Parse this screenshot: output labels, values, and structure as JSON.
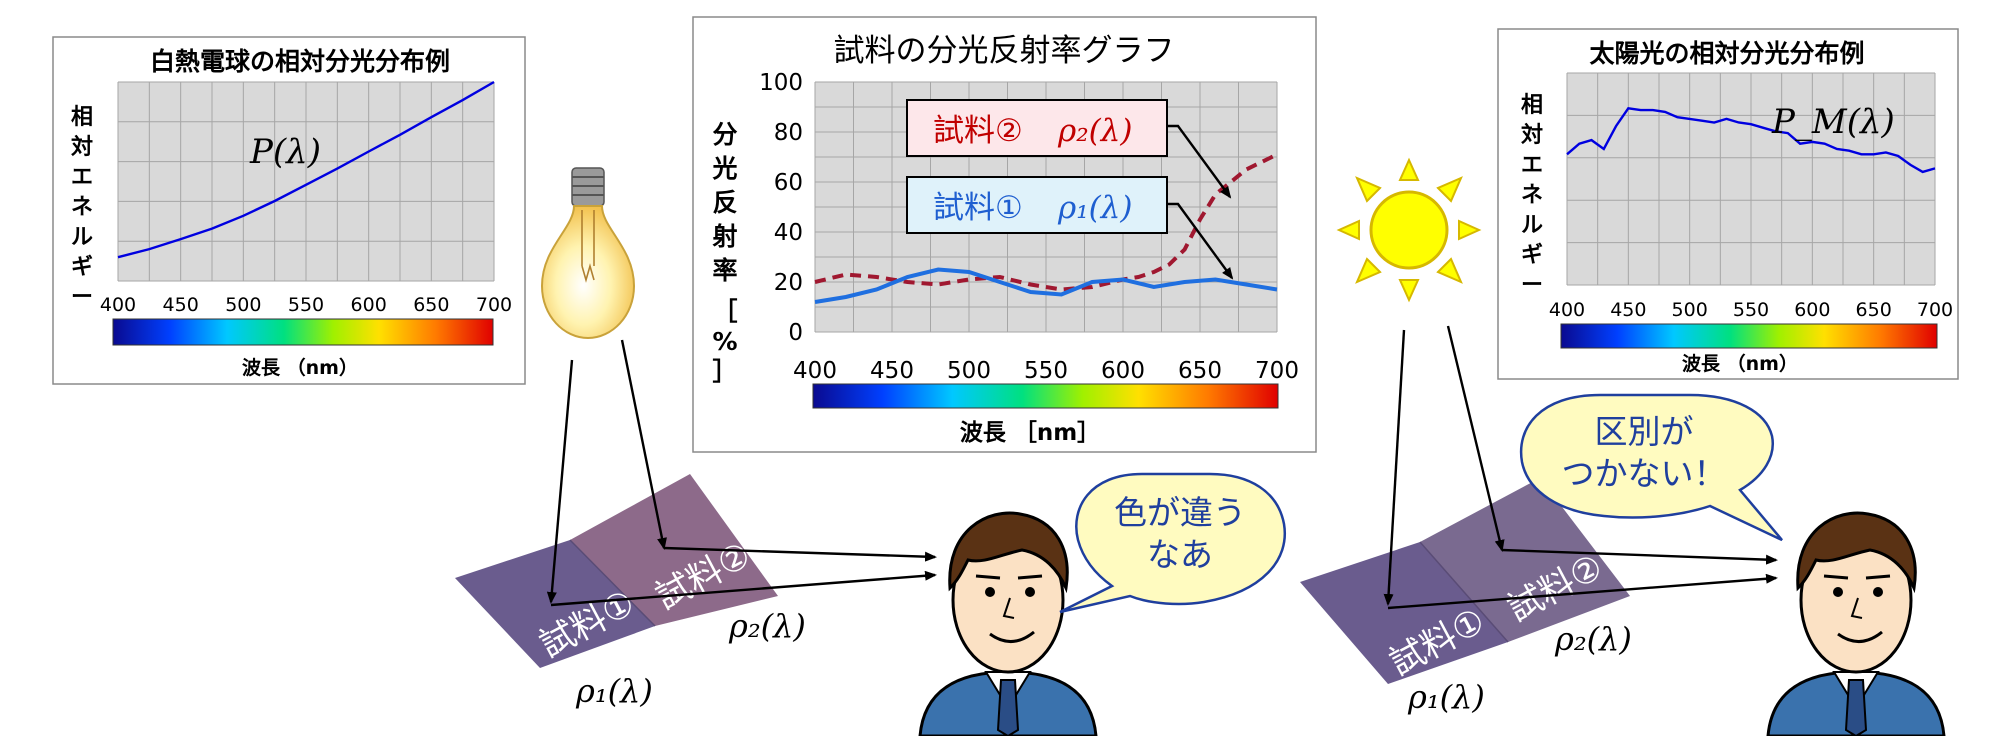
{
  "left_chart": {
    "title": "白熱電球の相対分光分布例",
    "ylabel_chars": [
      "相",
      "対",
      "エ",
      "ネ",
      "ル",
      "ギ",
      "ー"
    ],
    "xlabel": "波長 （nm）",
    "curve_label": "P(λ)",
    "chart_data": {
      "type": "line",
      "title": "白熱電球の相対分光分布例",
      "xlabel": "波長 （nm）",
      "ylabel": "相対エネルギー",
      "xlim": [
        400,
        700
      ],
      "x_ticks": [
        400,
        450,
        500,
        550,
        600,
        650,
        700
      ],
      "grid": true,
      "series": [
        {
          "name": "P(λ)",
          "color": "#0000e0",
          "x": [
            400,
            425,
            450,
            475,
            500,
            525,
            550,
            575,
            600,
            625,
            650,
            675,
            700
          ],
          "y": [
            1.0,
            1.17,
            1.38,
            1.6,
            1.87,
            2.18,
            2.52,
            2.86,
            3.22,
            3.57,
            3.94,
            4.3,
            4.68
          ]
        }
      ],
      "ylim": [
        0.5,
        4.68
      ]
    }
  },
  "center_chart": {
    "title": "試料の分光反射率グラフ",
    "ylabel_chars": [
      "分",
      "光",
      "反",
      "射",
      "率"
    ],
    "ylabel_unit_chars": [
      "［",
      "%",
      "］"
    ],
    "xlabel": "波長 ［nm］",
    "label2_text": "試料②",
    "label2_math": "ρ₂(λ)",
    "label1_text": "試料①",
    "label1_math": "ρ₁(λ)",
    "colors": {
      "sample1": "#1f6fe0",
      "sample2": "#a01830"
    },
    "chart_data": {
      "type": "line",
      "title": "試料の分光反射率グラフ",
      "xlabel": "波長 ［nm］",
      "ylabel": "分光反射率 ［%］",
      "xlim": [
        400,
        700
      ],
      "ylim": [
        0,
        100
      ],
      "x_ticks": [
        400,
        450,
        500,
        550,
        600,
        650,
        700
      ],
      "y_ticks": [
        0,
        20,
        40,
        60,
        80,
        100
      ],
      "grid": true,
      "series": [
        {
          "name": "試料① ρ₁(λ)",
          "color": "#1f6fe0",
          "dash": false,
          "x": [
            400,
            420,
            440,
            460,
            480,
            500,
            520,
            540,
            560,
            580,
            600,
            620,
            640,
            660,
            680,
            700
          ],
          "y": [
            12,
            14,
            17,
            22,
            25,
            24,
            20,
            16,
            15,
            20,
            21,
            18,
            20,
            21,
            19,
            17
          ]
        },
        {
          "name": "試料② ρ₂(λ)",
          "color": "#a01830",
          "dash": true,
          "x": [
            400,
            420,
            440,
            460,
            480,
            500,
            520,
            540,
            560,
            580,
            600,
            610,
            620,
            630,
            640,
            650,
            660,
            680,
            700
          ],
          "y": [
            20,
            23,
            22,
            20,
            19,
            21,
            22,
            19,
            17,
            18,
            21,
            22,
            24,
            27,
            33,
            45,
            55,
            65,
            71
          ]
        }
      ]
    }
  },
  "right_chart": {
    "title": "太陽光の相対分光分布例",
    "ylabel_chars": [
      "相",
      "対",
      "エ",
      "ネ",
      "ル",
      "ギ",
      "ー"
    ],
    "xlabel": "波長 （nm）",
    "curve_label": "P_M(λ)",
    "chart_data": {
      "type": "line",
      "title": "太陽光の相対分光分布例",
      "xlabel": "波長 （nm）",
      "ylabel": "相対エネルギー",
      "xlim": [
        400,
        700
      ],
      "x_ticks": [
        400,
        450,
        500,
        550,
        600,
        650,
        700
      ],
      "grid": true,
      "series": [
        {
          "name": "P_M(λ)",
          "color": "#0000e0",
          "x": [
            400,
            410,
            420,
            430,
            440,
            450,
            460,
            470,
            480,
            490,
            500,
            510,
            520,
            530,
            540,
            550,
            560,
            570,
            580,
            590,
            600,
            610,
            620,
            630,
            640,
            650,
            660,
            670,
            680,
            690,
            700
          ],
          "y": [
            0.74,
            0.8,
            0.82,
            0.77,
            0.9,
            1.0,
            0.99,
            0.99,
            0.98,
            0.95,
            0.94,
            0.93,
            0.92,
            0.94,
            0.92,
            0.91,
            0.89,
            0.87,
            0.86,
            0.8,
            0.81,
            0.8,
            0.77,
            0.76,
            0.74,
            0.74,
            0.75,
            0.73,
            0.68,
            0.64,
            0.66
          ]
        }
      ],
      "ylim": [
        0.0,
        1.2
      ]
    }
  },
  "samples_left": {
    "sample1_label": "試料①",
    "sample2_label": "試料②",
    "rho1": "ρ₁(λ)",
    "rho2": "ρ₂(λ)"
  },
  "samples_right": {
    "sample1_label": "試料①",
    "sample2_label": "試料②",
    "rho1": "ρ₁(λ)",
    "rho2": "ρ₂(λ)"
  },
  "bubble_left": {
    "line1": "色が違う",
    "line2": "なあ"
  },
  "bubble_right": {
    "line1": "区別が",
    "line2": "つかない！"
  },
  "icons": [
    "light-bulb-icon",
    "sun-icon",
    "person-icon"
  ]
}
